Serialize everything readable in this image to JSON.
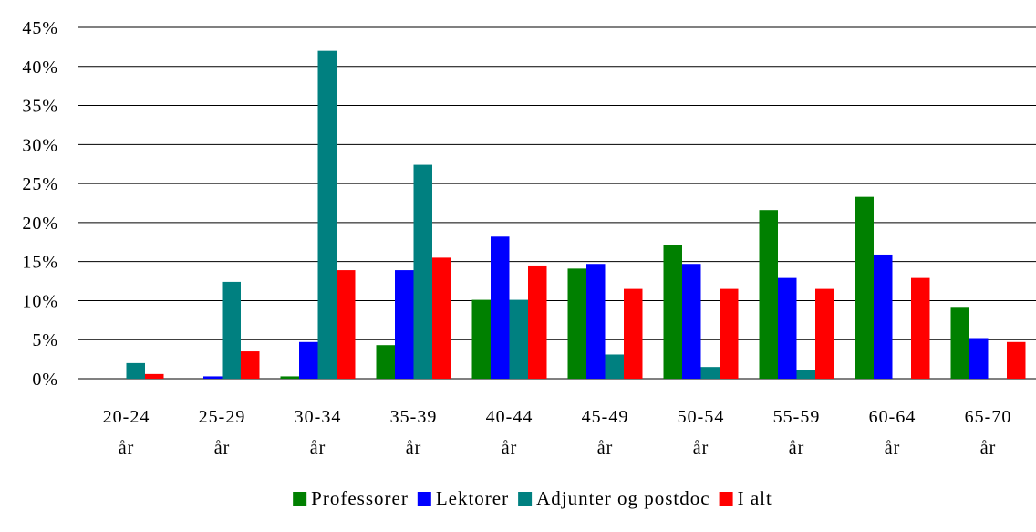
{
  "chart_data": {
    "type": "bar",
    "categories": [
      [
        "20-24",
        "år"
      ],
      [
        "25-29",
        "år"
      ],
      [
        "30-34",
        "år"
      ],
      [
        "35-39",
        "år"
      ],
      [
        "40-44",
        "år"
      ],
      [
        "45-49",
        "år"
      ],
      [
        "50-54",
        "år"
      ],
      [
        "55-59",
        "år"
      ],
      [
        "60-64",
        "år"
      ],
      [
        "65-70",
        "år"
      ]
    ],
    "series": [
      {
        "name": "Professorer",
        "color": "#008000",
        "values": [
          0,
          0,
          0.3,
          4.3,
          10.1,
          14.1,
          17.1,
          21.6,
          23.3,
          9.2
        ]
      },
      {
        "name": "Lektorer",
        "color": "#0000ff",
        "values": [
          0,
          0.3,
          4.7,
          13.9,
          18.2,
          14.7,
          14.7,
          12.9,
          15.9,
          5.2
        ]
      },
      {
        "name": "Adjunter og postdoc",
        "color": "#008080",
        "values": [
          2.0,
          12.4,
          42.0,
          27.4,
          10.1,
          3.1,
          1.5,
          1.1,
          0,
          0
        ]
      },
      {
        "name": "I alt",
        "color": "#ff0000",
        "values": [
          0.6,
          3.5,
          13.9,
          15.5,
          14.5,
          11.5,
          11.5,
          11.5,
          12.9,
          4.7
        ]
      }
    ],
    "yticks": [
      "0%",
      "5%",
      "10%",
      "15%",
      "20%",
      "25%",
      "30%",
      "35%",
      "40%",
      "45%"
    ],
    "ylim": [
      0,
      45
    ],
    "grid": true,
    "legend_position": "bottom"
  }
}
